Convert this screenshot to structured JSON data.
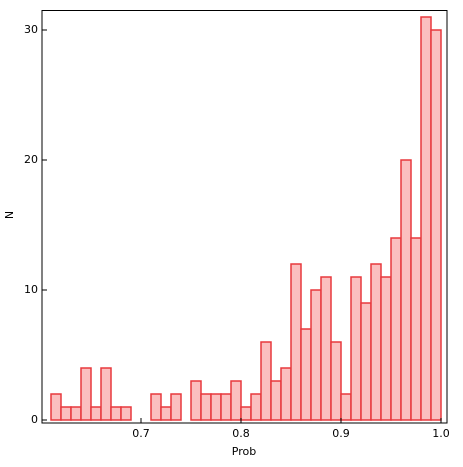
{
  "chart_data": {
    "type": "histogram",
    "x_label": "Prob",
    "y_label": "N",
    "color": "#fbbfbf",
    "edge_color": "#e8383d",
    "bins": [
      0.61,
      0.62,
      0.63,
      0.64,
      0.65,
      0.66,
      0.67,
      0.68,
      0.69,
      0.7,
      0.71,
      0.72,
      0.73,
      0.74,
      0.75,
      0.76,
      0.77,
      0.78,
      0.79,
      0.8,
      0.81,
      0.82,
      0.83,
      0.84,
      0.85,
      0.86,
      0.87,
      0.88,
      0.89,
      0.9,
      0.91,
      0.92,
      0.93,
      0.94,
      0.95,
      0.96,
      0.97,
      0.98,
      0.99,
      1.0
    ],
    "values": [
      2,
      1,
      1,
      4,
      1,
      4,
      1,
      1,
      0,
      0,
      2,
      1,
      2,
      0,
      3,
      2,
      2,
      2,
      3,
      1,
      2,
      6,
      3,
      4,
      12,
      7,
      10,
      11,
      6,
      2,
      11,
      9,
      12,
      11,
      14,
      20,
      14,
      31,
      30
    ],
    "xlim": [
      0.6,
      1.006
    ],
    "ylim": [
      0,
      31.5
    ],
    "xticks": [
      0.7,
      0.8,
      0.9,
      {
        "value": 1,
        "label": "1.0"
      }
    ],
    "yticks": [
      0,
      10,
      20,
      30
    ]
  }
}
